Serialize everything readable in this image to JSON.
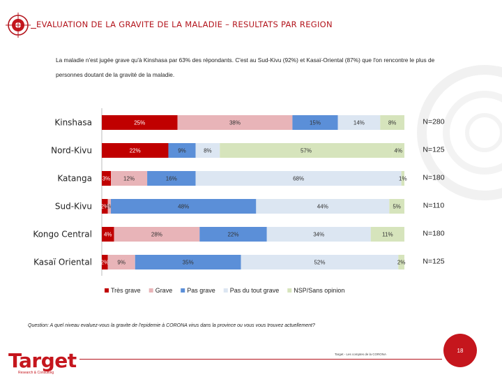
{
  "header": {
    "title": "EVALUATION DE LA GRAVITE DE LA MALADIE – RESULTATS PAR REGION"
  },
  "intro": "La maladie n'est jugée grave qu'à Kinshasa par 63% des répondants. C'est au Sud-Kivu (92%) et Kasaï-Oriental (87%) que l'on rencontre le plus de personnes doutant de la gravité de la maladie.",
  "question": "Question: A quel niveau evaluez-vous la gravite de l'epidemie à CORONA virus dans la province ou vous vous trouvez actuellement?",
  "source": "Target - Les comptes de la CORONA",
  "page_number": "18",
  "brand": {
    "name": "Target",
    "tagline": "Research & Consulting"
  },
  "colors": {
    "tres_grave": "#c00000",
    "grave": "#e8b4b8",
    "pas_grave": "#5b8fd8",
    "pas_du_tout": "#dce6f2",
    "nsp": "#d6e4bc",
    "accent": "#b3141c"
  },
  "chart_data": {
    "type": "bar",
    "orientation": "horizontal",
    "stacked": true,
    "normalized": true,
    "categories": [
      "Kinshasa",
      "Nord-Kivu",
      "Katanga",
      "Sud-Kivu",
      "Kongo Central",
      "Kasaï Oriental"
    ],
    "series": [
      {
        "name": "Très grave",
        "color": "#c00000",
        "values": [
          25,
          22,
          3,
          2,
          4,
          2
        ],
        "labels": [
          "25%",
          "22%",
          "3%",
          "2%",
          "4%",
          "2%"
        ]
      },
      {
        "name": "Grave",
        "color": "#e8b4b8",
        "values": [
          38,
          0,
          12,
          1,
          28,
          9
        ],
        "labels": [
          "38%",
          "",
          "12%",
          "1%",
          "28%",
          "9%"
        ]
      },
      {
        "name": "Pas grave",
        "color": "#5b8fd8",
        "values": [
          15,
          9,
          16,
          48,
          22,
          35
        ],
        "labels": [
          "15%",
          "9%",
          "16%",
          "48%",
          "22%",
          "35%"
        ]
      },
      {
        "name": "Pas du tout grave",
        "color": "#dce6f2",
        "values": [
          14,
          8,
          68,
          44,
          34,
          52
        ],
        "labels": [
          "14%",
          "8%",
          "68%",
          "44%",
          "34%",
          "52%"
        ]
      },
      {
        "name": "NSP/Sans opinion",
        "color": "#d6e4bc",
        "values": [
          8,
          57,
          1,
          5,
          11,
          2
        ],
        "labels": [
          "8%",
          "57%",
          "1%",
          "5%",
          "11%",
          "2%"
        ]
      }
    ],
    "extra_segments": [
      {
        "category": "Nord-Kivu",
        "values": [
          4
        ],
        "labels": [
          "4%"
        ]
      }
    ],
    "sample_sizes": [
      "N=280",
      "N=125",
      "N=180",
      "N=110",
      "N=180",
      "N=125"
    ],
    "xlim": [
      0,
      100
    ],
    "legend": [
      "Très grave",
      "Grave",
      "Pas grave",
      "Pas du tout grave",
      "NSP/Sans opinion"
    ],
    "legend_position": "bottom"
  }
}
